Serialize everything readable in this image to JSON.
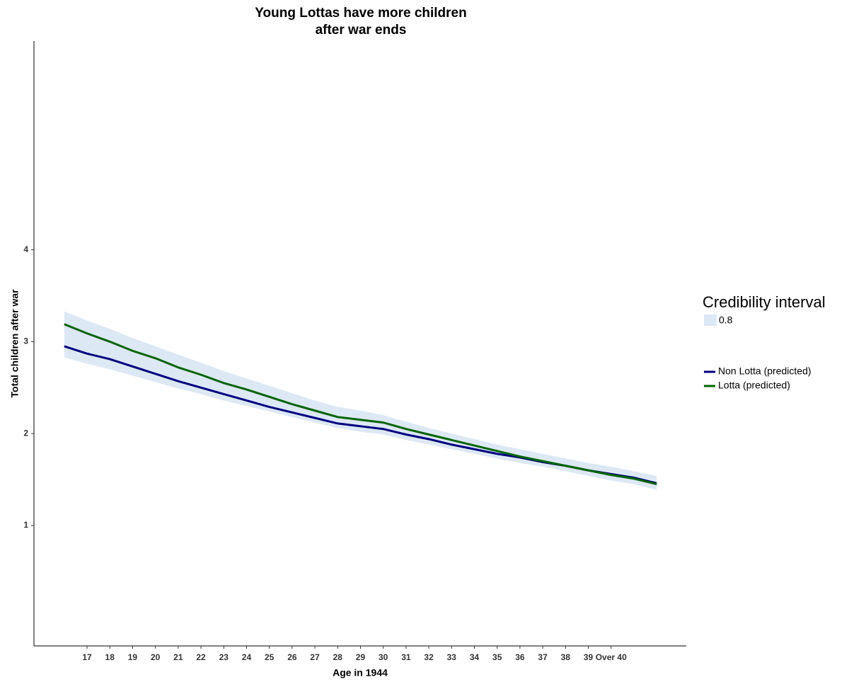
{
  "chart_data": {
    "type": "line",
    "title": [
      "Young Lottas have more children",
      "after war ends"
    ],
    "x_label": "Age in 1944",
    "y_label": "Total children after war",
    "x": [
      16,
      17,
      18,
      19,
      20,
      21,
      22,
      23,
      24,
      25,
      26,
      27,
      28,
      29,
      30,
      31,
      32,
      33,
      34,
      35,
      36,
      37,
      38,
      39,
      40,
      41,
      42
    ],
    "xlim": [
      14.67,
      43.3
    ],
    "xticks": [
      17,
      18,
      19,
      20,
      21,
      22,
      23,
      24,
      25,
      26,
      27,
      28,
      29,
      30,
      31,
      32,
      33,
      34,
      35,
      36,
      37,
      38,
      39,
      {
        "value": 40,
        "label": "Over 40"
      }
    ],
    "ylim": [
      -0.31,
      6.27
    ],
    "yticks": [
      1,
      2,
      3,
      4
    ],
    "grid": false,
    "legend_title": "Credibility interval",
    "band": {
      "name": "0.8",
      "color": "#dde8f5",
      "upper": [
        3.33,
        3.23,
        3.14,
        3.04,
        2.95,
        2.86,
        2.77,
        2.68,
        2.6,
        2.52,
        2.44,
        2.36,
        2.29,
        2.25,
        2.2,
        2.13,
        2.06,
        2.0,
        1.94,
        1.88,
        1.83,
        1.78,
        1.73,
        1.68,
        1.64,
        1.59,
        1.54
      ],
      "lower": [
        2.83,
        2.76,
        2.7,
        2.63,
        2.56,
        2.49,
        2.43,
        2.36,
        2.3,
        2.24,
        2.18,
        2.12,
        2.06,
        2.02,
        1.99,
        1.93,
        1.88,
        1.83,
        1.78,
        1.73,
        1.68,
        1.64,
        1.59,
        1.54,
        1.49,
        1.45,
        1.39
      ]
    },
    "series": [
      {
        "name": "Non Lotta (predicted)",
        "color": "#000080",
        "values": [
          2.95,
          2.87,
          2.81,
          2.73,
          2.65,
          2.57,
          2.5,
          2.43,
          2.36,
          2.29,
          2.23,
          2.17,
          2.11,
          2.08,
          2.05,
          1.99,
          1.94,
          1.88,
          1.83,
          1.78,
          1.74,
          1.69,
          1.65,
          1.6,
          1.56,
          1.52,
          1.46
        ]
      },
      {
        "name": "Lotta (predicted)",
        "color": "#006400",
        "values": [
          3.19,
          3.09,
          3.0,
          2.9,
          2.82,
          2.72,
          2.64,
          2.55,
          2.48,
          2.4,
          2.32,
          2.25,
          2.18,
          2.15,
          2.12,
          2.05,
          1.99,
          1.93,
          1.87,
          1.81,
          1.75,
          1.7,
          1.65,
          1.6,
          1.55,
          1.51,
          1.45
        ]
      }
    ]
  }
}
